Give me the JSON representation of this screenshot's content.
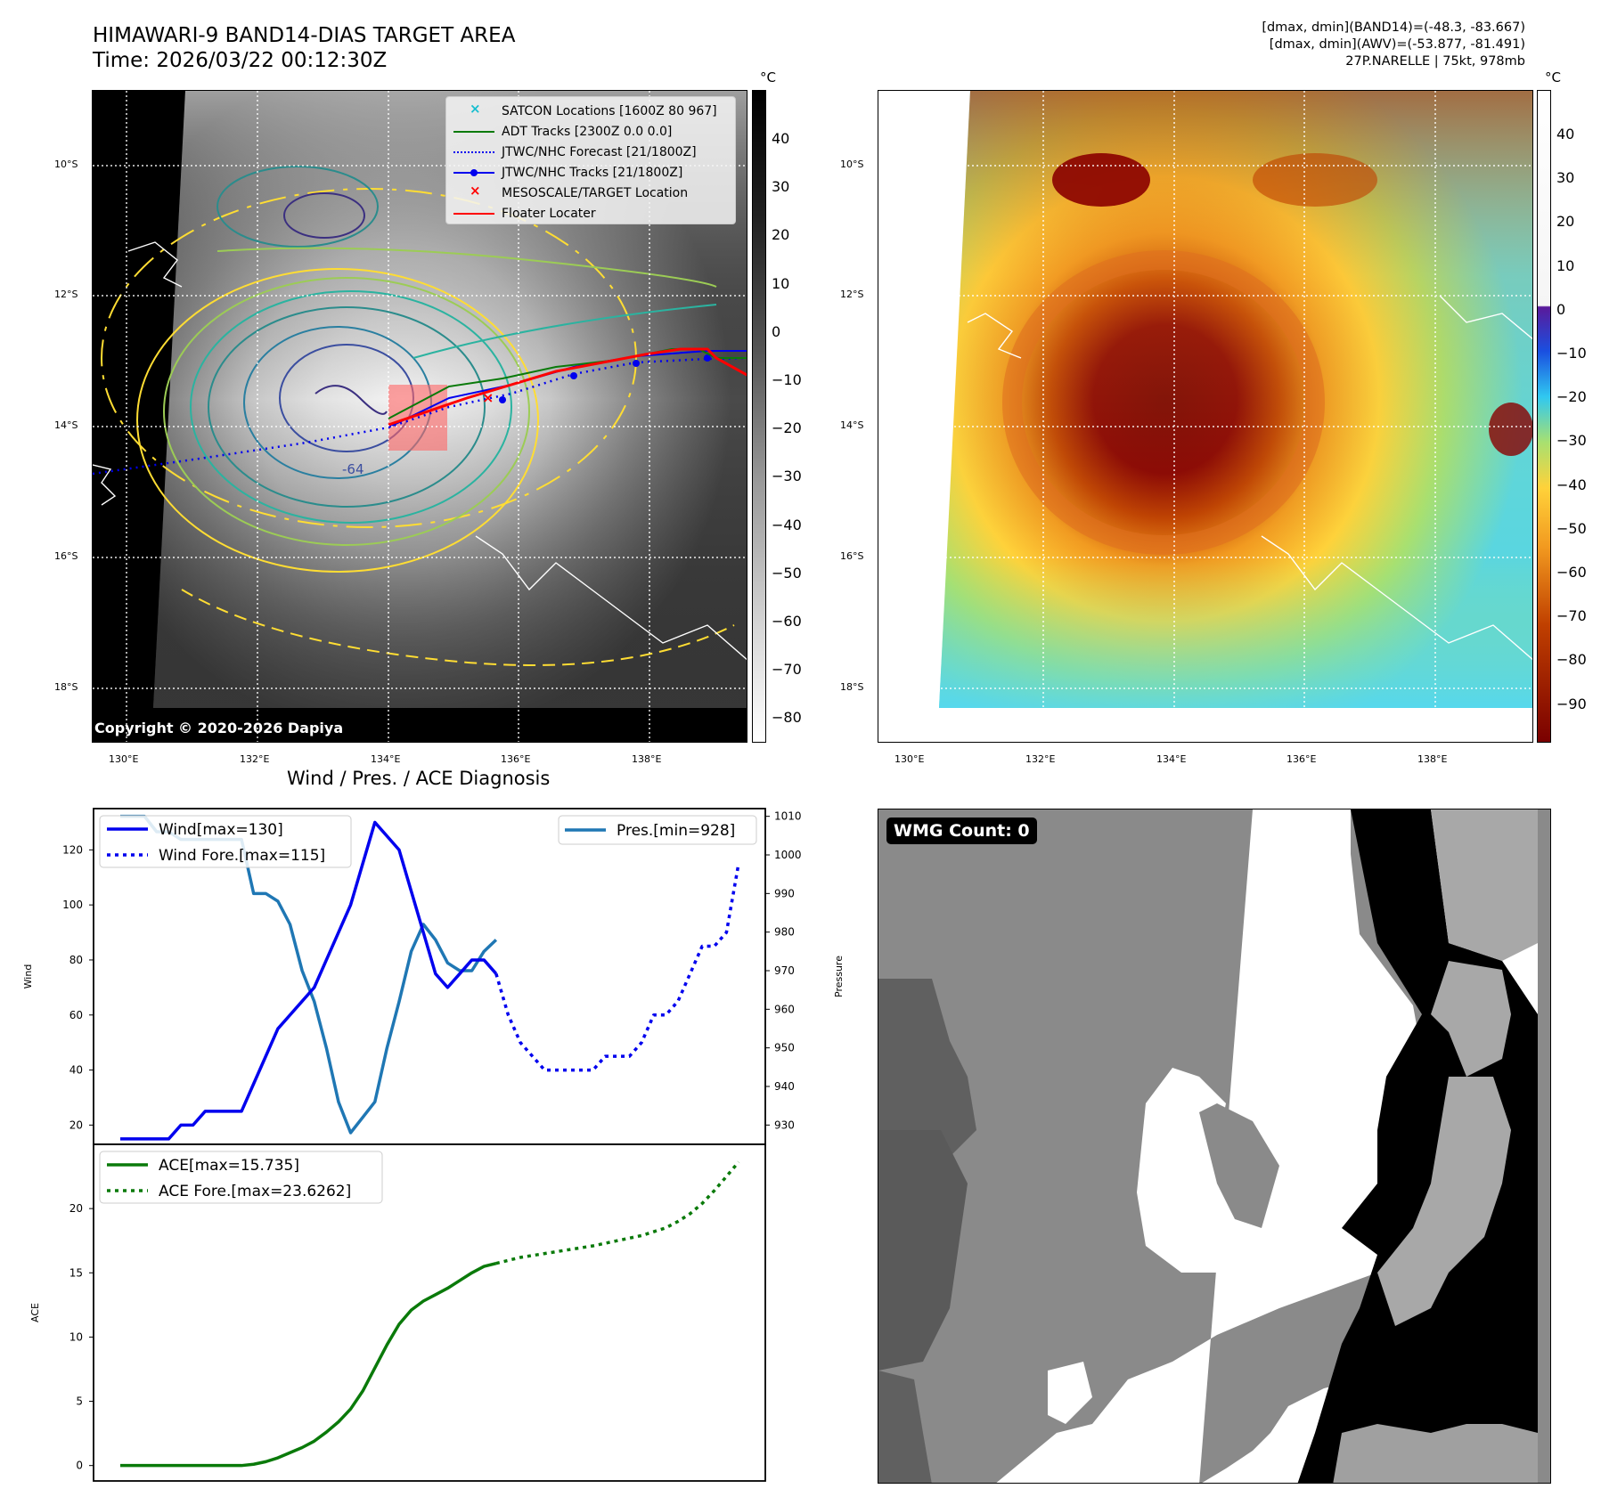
{
  "header": {
    "title_line1": "HIMAWARI-9 BAND14-DIAS TARGET AREA",
    "title_line2": "Time: 2026/03/22 00:12:30Z",
    "right_line1": "[dmax, dmin](BAND14)=(-48.3, -83.667)",
    "right_line2": "[dmax, dmin](AWV)=(-53.877, -81.491)",
    "right_line3": "27P.NARELLE | 75kt, 978mb"
  },
  "maps": {
    "lat_labels": [
      "10°S",
      "12°S",
      "14°S",
      "16°S",
      "18°S"
    ],
    "lon_labels": [
      "130°E",
      "132°E",
      "134°E",
      "136°E",
      "138°E"
    ],
    "unit": "°C",
    "cbar_left_ticks": [
      "40",
      "30",
      "20",
      "10",
      "0",
      "−10",
      "−20",
      "−30",
      "−40",
      "−50",
      "−60",
      "−70",
      "−80"
    ],
    "cbar_right_ticks": [
      "40",
      "30",
      "20",
      "10",
      "0",
      "−10",
      "−20",
      "−30",
      "−40",
      "−50",
      "−60",
      "−70",
      "−80",
      "−90"
    ],
    "contour_label": "-64",
    "copyright": "Copyright © 2020-2026 Dapiya",
    "legend": [
      {
        "label": "SATCON Locations [1600Z 80 967]",
        "color": "#17becf"
      },
      {
        "label": "ADT Tracks [2300Z 0.0 0.0]",
        "color": "#0a7a0a"
      },
      {
        "label": "JTWC/NHC Forecast [21/1800Z]",
        "color": "#0000ee"
      },
      {
        "label": "JTWC/NHC Tracks [21/1800Z]",
        "color": "#0000ee"
      },
      {
        "label": "MESOSCALE/TARGET Location",
        "color": "#ff0000"
      },
      {
        "label": "Floater Locater",
        "color": "#ff0000"
      }
    ]
  },
  "diagnosis": {
    "title": "Wind / Pres. / ACE Diagnosis",
    "wind_ylabel": "Wind",
    "pres_ylabel": "Pressure",
    "ace_ylabel": "ACE",
    "legend_wind": "Wind[max=130]",
    "legend_wind_fore": "Wind Fore.[max=115]",
    "legend_pres": "Pres.[min=928]",
    "legend_ace": "ACE[max=15.735]",
    "legend_ace_fore": "ACE Fore.[max=23.6262]",
    "wmg_label": "WMG Count: 0"
  },
  "chart_data": [
    {
      "type": "line",
      "title": "Wind / Pres. / ACE Diagnosis",
      "ylabel": "Wind",
      "y2label": "Pressure",
      "ylim": [
        13,
        135
      ],
      "y2lim": [
        925,
        1012
      ],
      "yticks": [
        20,
        40,
        60,
        80,
        100,
        120
      ],
      "y2ticks": [
        930,
        940,
        950,
        960,
        970,
        980,
        990,
        1000,
        1010
      ],
      "series": [
        {
          "name": "Wind[max=130]",
          "axis": "left",
          "color": "#0000ee",
          "style": "solid",
          "x": [
            0,
            1,
            2,
            3,
            4,
            5,
            6,
            7,
            8,
            9,
            10,
            11,
            12,
            13,
            14,
            15,
            16,
            17,
            18,
            19,
            20,
            21,
            22,
            23,
            24,
            25,
            26,
            27,
            28,
            29,
            30,
            31,
            32,
            33,
            34,
            35,
            36,
            37,
            38,
            39,
            40
          ],
          "values": [
            15,
            15,
            15,
            15,
            15,
            20,
            20,
            25,
            25,
            25,
            25,
            35,
            45,
            55,
            60,
            65,
            70,
            80,
            90,
            100,
            115,
            130,
            125,
            120,
            105,
            90,
            75,
            70,
            75,
            80,
            80,
            75,
            null,
            null,
            null,
            null,
            null,
            null,
            null,
            null,
            null
          ]
        },
        {
          "name": "Wind Fore.[max=115]",
          "axis": "left",
          "color": "#0000ee",
          "style": "dotted",
          "x": [
            31,
            32,
            33,
            34,
            35,
            36,
            37,
            38,
            39,
            40,
            41,
            42,
            43,
            44,
            45,
            46,
            47,
            48,
            49,
            50,
            51
          ],
          "values": [
            75,
            60,
            50,
            45,
            40,
            40,
            40,
            40,
            40,
            45,
            45,
            45,
            50,
            60,
            60,
            65,
            75,
            85,
            85,
            90,
            115
          ]
        },
        {
          "name": "Pres.[min=928]",
          "axis": "right",
          "color": "#1f77b4",
          "style": "solid",
          "x": [
            0,
            1,
            2,
            3,
            4,
            5,
            6,
            7,
            8,
            9,
            10,
            11,
            12,
            13,
            14,
            15,
            16,
            17,
            18,
            19,
            20,
            21,
            22,
            23,
            24,
            25,
            26,
            27,
            28,
            29,
            30,
            31,
            32
          ],
          "values": [
            1010,
            1010,
            1010,
            1006,
            1006,
            1004,
            1004,
            1004,
            1004,
            1004,
            1004,
            990,
            990,
            988,
            982,
            970,
            962,
            950,
            936,
            928,
            932,
            936,
            950,
            962,
            975,
            982,
            978,
            972,
            970,
            970,
            975,
            978,
            null
          ]
        }
      ]
    },
    {
      "type": "line",
      "ylabel": "ACE",
      "ylim": [
        -1.2,
        25
      ],
      "yticks": [
        0,
        5,
        10,
        15,
        20
      ],
      "series": [
        {
          "name": "ACE[max=15.735]",
          "color": "#0a7a0a",
          "style": "solid",
          "x": [
            0,
            2,
            4,
            6,
            8,
            10,
            11,
            12,
            13,
            14,
            15,
            16,
            17,
            18,
            19,
            20,
            21,
            22,
            23,
            24,
            25,
            26,
            27,
            28,
            29,
            30,
            31
          ],
          "values": [
            0,
            0,
            0,
            0,
            0,
            0,
            0.1,
            0.3,
            0.6,
            1.0,
            1.4,
            1.9,
            2.6,
            3.4,
            4.4,
            5.8,
            7.6,
            9.4,
            11.0,
            12.1,
            12.8,
            13.3,
            13.8,
            14.4,
            15.0,
            15.5,
            15.735
          ]
        },
        {
          "name": "ACE Fore.[max=23.6262]",
          "color": "#0a7a0a",
          "style": "dotted",
          "x": [
            31,
            33,
            35,
            37,
            39,
            41,
            43,
            45,
            46,
            47,
            48,
            49,
            50,
            51
          ],
          "values": [
            15.735,
            16.2,
            16.5,
            16.8,
            17.1,
            17.5,
            17.9,
            18.5,
            19.0,
            19.6,
            20.4,
            21.4,
            22.5,
            23.6262
          ]
        }
      ]
    }
  ]
}
